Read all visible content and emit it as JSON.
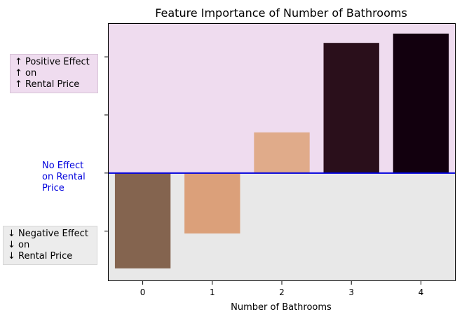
{
  "chart_data": {
    "type": "bar",
    "title": "Feature Importance of Number of Bathrooms",
    "xlabel": "Number of Bathrooms",
    "ylabel": "",
    "categories": [
      "0",
      "1",
      "2",
      "3",
      "4"
    ],
    "values": [
      -0.82,
      -0.52,
      0.35,
      1.12,
      1.2
    ],
    "bar_colors": [
      "#84644f",
      "#dba07a",
      "#e0ab8a",
      "#2a0f1b",
      "#12000e"
    ],
    "ylim": [
      -0.93,
      1.29
    ],
    "yticks": [
      -0.5,
      0,
      0.5,
      1.0
    ],
    "zero_line_color": "#0000dd",
    "positive_region_color": "#efdcef",
    "negative_region_color": "#e8e8e8",
    "annotations": {
      "positive": [
        "↑ Positive Effect",
        "↑ on",
        "↑ Rental Price"
      ],
      "none": [
        "No Effect",
        "on Rental",
        "Price"
      ],
      "negative": [
        "↓ Negative Effect",
        "↓ on",
        "↓ Rental Price"
      ]
    }
  }
}
